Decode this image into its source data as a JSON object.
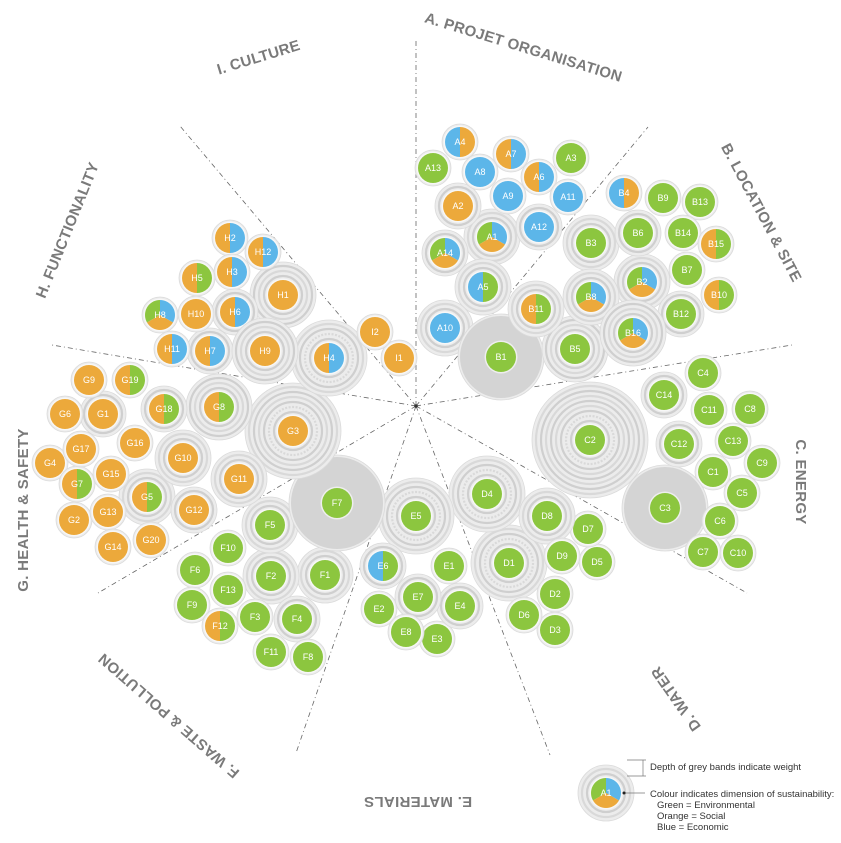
{
  "colors": {
    "environmental": "#8cc63f",
    "social": "#eca93b",
    "economic": "#5cb6e9",
    "band": "#e3e3e3",
    "band_dark": "#d4d4d4"
  },
  "categories": [
    {
      "id": "A",
      "label": "A. PROJET ORGANISATION"
    },
    {
      "id": "B",
      "label": "B. LOCATION & SITE"
    },
    {
      "id": "C",
      "label": "C. ENERGY"
    },
    {
      "id": "D",
      "label": "D. WATER"
    },
    {
      "id": "E",
      "label": "E. MATERIALS"
    },
    {
      "id": "F",
      "label": "F. WASTE & POLLUTION"
    },
    {
      "id": "G",
      "label": "G. HEALTH & SAFETY"
    },
    {
      "id": "H",
      "label": "H. FUNCTIONALITY"
    },
    {
      "id": "I",
      "label": "I. CULTURE"
    }
  ],
  "criteria": [
    {
      "id": "A1",
      "dims": [
        "g",
        "b",
        "o"
      ],
      "weight": 2
    },
    {
      "id": "A2",
      "dims": [
        "o"
      ],
      "weight": 1
    },
    {
      "id": "A3",
      "dims": [
        "g"
      ],
      "weight": 0
    },
    {
      "id": "A4",
      "dims": [
        "b",
        "o"
      ],
      "weight": 0
    },
    {
      "id": "A5",
      "dims": [
        "b",
        "g"
      ],
      "weight": 2
    },
    {
      "id": "A6",
      "dims": [
        "o",
        "b"
      ],
      "weight": 0
    },
    {
      "id": "A7",
      "dims": [
        "o",
        "b"
      ],
      "weight": 0
    },
    {
      "id": "A8",
      "dims": [
        "b"
      ],
      "weight": 0
    },
    {
      "id": "A9",
      "dims": [
        "b"
      ],
      "weight": 0
    },
    {
      "id": "A10",
      "dims": [
        "b"
      ],
      "weight": 2
    },
    {
      "id": "A11",
      "dims": [
        "b"
      ],
      "weight": 0
    },
    {
      "id": "A12",
      "dims": [
        "b"
      ],
      "weight": 1
    },
    {
      "id": "A13",
      "dims": [
        "g"
      ],
      "weight": 0
    },
    {
      "id": "A14",
      "dims": [
        "g",
        "b",
        "o"
      ],
      "weight": 1
    },
    {
      "id": "B1",
      "dims": [
        "g"
      ],
      "weight": 5
    },
    {
      "id": "B2",
      "dims": [
        "g",
        "b",
        "o"
      ],
      "weight": 2
    },
    {
      "id": "B3",
      "dims": [
        "g"
      ],
      "weight": 2
    },
    {
      "id": "B4",
      "dims": [
        "b",
        "o"
      ],
      "weight": 0
    },
    {
      "id": "B5",
      "dims": [
        "g"
      ],
      "weight": 3
    },
    {
      "id": "B6",
      "dims": [
        "g"
      ],
      "weight": 1
    },
    {
      "id": "B7",
      "dims": [
        "g"
      ],
      "weight": 0
    },
    {
      "id": "B8",
      "dims": [
        "g",
        "b",
        "o"
      ],
      "weight": 2
    },
    {
      "id": "B9",
      "dims": [
        "g"
      ],
      "weight": 0
    },
    {
      "id": "B10",
      "dims": [
        "o",
        "g"
      ],
      "weight": 0
    },
    {
      "id": "B11",
      "dims": [
        "o",
        "g"
      ],
      "weight": 2
    },
    {
      "id": "B12",
      "dims": [
        "g"
      ],
      "weight": 1
    },
    {
      "id": "B13",
      "dims": [
        "g"
      ],
      "weight": 0
    },
    {
      "id": "B14",
      "dims": [
        "g"
      ],
      "weight": 0
    },
    {
      "id": "B15",
      "dims": [
        "o",
        "g"
      ],
      "weight": 0
    },
    {
      "id": "B16",
      "dims": [
        "g",
        "b",
        "o"
      ],
      "weight": 3
    },
    {
      "id": "C1",
      "dims": [
        "g"
      ],
      "weight": 0
    },
    {
      "id": "C2",
      "dims": [
        "g"
      ],
      "weight": 8
    },
    {
      "id": "C3",
      "dims": [
        "g"
      ],
      "weight": 5
    },
    {
      "id": "C4",
      "dims": [
        "g"
      ],
      "weight": 0
    },
    {
      "id": "C5",
      "dims": [
        "g"
      ],
      "weight": 0
    },
    {
      "id": "C6",
      "dims": [
        "g"
      ],
      "weight": 0
    },
    {
      "id": "C7",
      "dims": [
        "g"
      ],
      "weight": 0
    },
    {
      "id": "C8",
      "dims": [
        "g"
      ],
      "weight": 0
    },
    {
      "id": "C9",
      "dims": [
        "g"
      ],
      "weight": 0
    },
    {
      "id": "C10",
      "dims": [
        "g"
      ],
      "weight": 0
    },
    {
      "id": "C11",
      "dims": [
        "g"
      ],
      "weight": 0
    },
    {
      "id": "C12",
      "dims": [
        "g"
      ],
      "weight": 1
    },
    {
      "id": "C13",
      "dims": [
        "g"
      ],
      "weight": 0
    },
    {
      "id": "C14",
      "dims": [
        "g"
      ],
      "weight": 1
    },
    {
      "id": "D1",
      "dims": [
        "g"
      ],
      "weight": 4
    },
    {
      "id": "D2",
      "dims": [
        "g"
      ],
      "weight": 0
    },
    {
      "id": "D3",
      "dims": [
        "g"
      ],
      "weight": 0
    },
    {
      "id": "D4",
      "dims": [
        "g"
      ],
      "weight": 4
    },
    {
      "id": "D5",
      "dims": [
        "g"
      ],
      "weight": 0
    },
    {
      "id": "D6",
      "dims": [
        "g"
      ],
      "weight": 0
    },
    {
      "id": "D7",
      "dims": [
        "g"
      ],
      "weight": 0
    },
    {
      "id": "D8",
      "dims": [
        "g"
      ],
      "weight": 2
    },
    {
      "id": "D9",
      "dims": [
        "g"
      ],
      "weight": 0
    },
    {
      "id": "E1",
      "dims": [
        "g"
      ],
      "weight": 0
    },
    {
      "id": "E2",
      "dims": [
        "g"
      ],
      "weight": 0
    },
    {
      "id": "E3",
      "dims": [
        "g"
      ],
      "weight": 0
    },
    {
      "id": "E4",
      "dims": [
        "g"
      ],
      "weight": 1
    },
    {
      "id": "E5",
      "dims": [
        "g"
      ],
      "weight": 4
    },
    {
      "id": "E6",
      "dims": [
        "b",
        "g"
      ],
      "weight": 1
    },
    {
      "id": "E7",
      "dims": [
        "g"
      ],
      "weight": 1
    },
    {
      "id": "E8",
      "dims": [
        "g"
      ],
      "weight": 0
    },
    {
      "id": "F1",
      "dims": [
        "g"
      ],
      "weight": 2
    },
    {
      "id": "F2",
      "dims": [
        "g"
      ],
      "weight": 2
    },
    {
      "id": "F3",
      "dims": [
        "g"
      ],
      "weight": 0
    },
    {
      "id": "F4",
      "dims": [
        "g"
      ],
      "weight": 1
    },
    {
      "id": "F5",
      "dims": [
        "g"
      ],
      "weight": 2
    },
    {
      "id": "F6",
      "dims": [
        "g"
      ],
      "weight": 0
    },
    {
      "id": "F7",
      "dims": [
        "g"
      ],
      "weight": 6
    },
    {
      "id": "F8",
      "dims": [
        "g"
      ],
      "weight": 0
    },
    {
      "id": "F9",
      "dims": [
        "g"
      ],
      "weight": 0
    },
    {
      "id": "F10",
      "dims": [
        "g"
      ],
      "weight": 0
    },
    {
      "id": "F11",
      "dims": [
        "g"
      ],
      "weight": 0
    },
    {
      "id": "F12",
      "dims": [
        "o",
        "g"
      ],
      "weight": 0
    },
    {
      "id": "F13",
      "dims": [
        "g"
      ],
      "weight": 0
    },
    {
      "id": "G1",
      "dims": [
        "o"
      ],
      "weight": 1
    },
    {
      "id": "G2",
      "dims": [
        "o"
      ],
      "weight": 0
    },
    {
      "id": "G3",
      "dims": [
        "o"
      ],
      "weight": 6
    },
    {
      "id": "G4",
      "dims": [
        "o"
      ],
      "weight": 0
    },
    {
      "id": "G5",
      "dims": [
        "o",
        "g"
      ],
      "weight": 2
    },
    {
      "id": "G6",
      "dims": [
        "o"
      ],
      "weight": 0
    },
    {
      "id": "G7",
      "dims": [
        "o",
        "g"
      ],
      "weight": 0
    },
    {
      "id": "G8",
      "dims": [
        "o",
        "g"
      ],
      "weight": 3
    },
    {
      "id": "G9",
      "dims": [
        "o"
      ],
      "weight": 0
    },
    {
      "id": "G10",
      "dims": [
        "o"
      ],
      "weight": 2
    },
    {
      "id": "G11",
      "dims": [
        "o"
      ],
      "weight": 2
    },
    {
      "id": "G12",
      "dims": [
        "o"
      ],
      "weight": 1
    },
    {
      "id": "G13",
      "dims": [
        "o"
      ],
      "weight": 0
    },
    {
      "id": "G14",
      "dims": [
        "o"
      ],
      "weight": 0
    },
    {
      "id": "G15",
      "dims": [
        "o"
      ],
      "weight": 0
    },
    {
      "id": "G16",
      "dims": [
        "o"
      ],
      "weight": 0
    },
    {
      "id": "G17",
      "dims": [
        "o"
      ],
      "weight": 0
    },
    {
      "id": "G18",
      "dims": [
        "o",
        "g"
      ],
      "weight": 1
    },
    {
      "id": "G19",
      "dims": [
        "o",
        "g"
      ],
      "weight": 0
    },
    {
      "id": "G20",
      "dims": [
        "o"
      ],
      "weight": 0
    },
    {
      "id": "H1",
      "dims": [
        "o"
      ],
      "weight": 3
    },
    {
      "id": "H2",
      "dims": [
        "o",
        "b"
      ],
      "weight": 0
    },
    {
      "id": "H3",
      "dims": [
        "o",
        "b"
      ],
      "weight": 0
    },
    {
      "id": "H4",
      "dims": [
        "o",
        "b"
      ],
      "weight": 4
    },
    {
      "id": "H5",
      "dims": [
        "o",
        "g"
      ],
      "weight": 0
    },
    {
      "id": "H6",
      "dims": [
        "o",
        "b"
      ],
      "weight": 1
    },
    {
      "id": "H7",
      "dims": [
        "o",
        "b"
      ],
      "weight": 1
    },
    {
      "id": "H8",
      "dims": [
        "g",
        "b",
        "o"
      ],
      "weight": 0
    },
    {
      "id": "H9",
      "dims": [
        "o"
      ],
      "weight": 3
    },
    {
      "id": "H10",
      "dims": [
        "o"
      ],
      "weight": 0
    },
    {
      "id": "H11",
      "dims": [
        "o",
        "b"
      ],
      "weight": 0
    },
    {
      "id": "H12",
      "dims": [
        "o",
        "b"
      ],
      "weight": 0
    },
    {
      "id": "I1",
      "dims": [
        "o"
      ],
      "weight": 0
    },
    {
      "id": "I2",
      "dims": [
        "o"
      ],
      "weight": 0
    }
  ],
  "legend": {
    "sample_label": "A1",
    "weight_text": "Depth of grey bands indicate weight",
    "colour_text": "Colour indicates dimension of sustainability:",
    "green": "Green = Environmental",
    "orange": "Orange = Social",
    "blue": "Blue = Economic"
  }
}
